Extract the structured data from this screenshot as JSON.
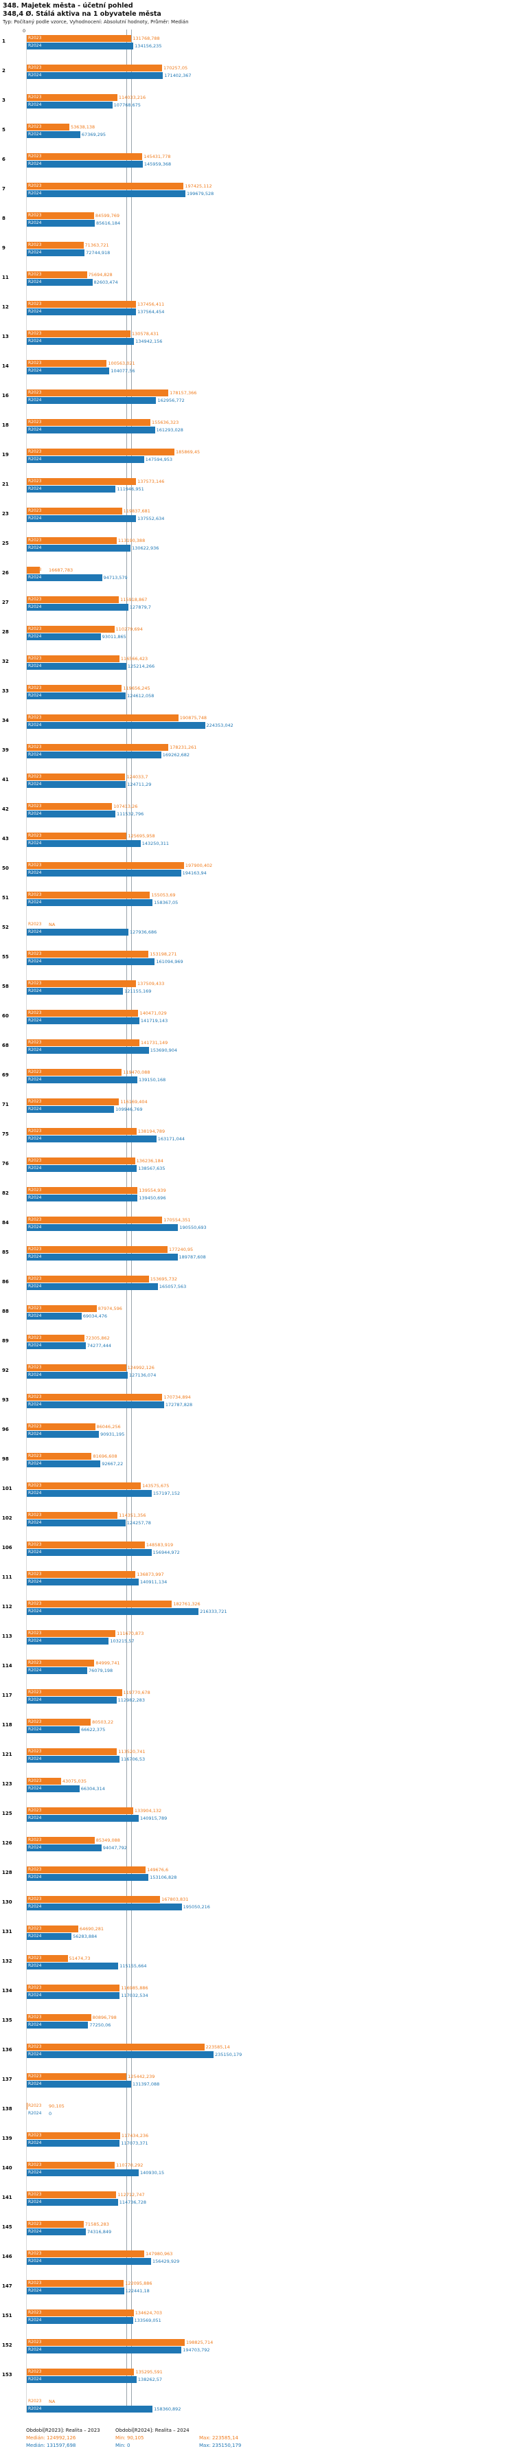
{
  "header": {
    "title": "348. Majetek města - účetní pohled",
    "indicator": "348,4 Ø. Stálá aktiva na 1 obyvatele města",
    "meta": "Typ: Počítaný podle vzorce, Vyhodnocení: Absolutní hodnoty, Průměr: Medián"
  },
  "legend": {
    "r2023": {
      "period": "Období[R2023]: Realita – 2023",
      "median": "Medián: 124992,126",
      "min": "Min: 90,105",
      "max": "Max: 223585,14"
    },
    "r2024": {
      "period": "Období[R2024]: Realita – 2024",
      "median": "Medián: 131597,698",
      "min": "Min: 0",
      "max": "Max: 235150,179"
    }
  },
  "chart_data": {
    "type": "bar",
    "orientation": "horizontal",
    "title": "348,4 Ø. Stálá aktiva na 1 obyvatele města",
    "x_axis": {
      "min": 0,
      "max": 235150.179,
      "zero_label": "0"
    },
    "grid": "median-lines-only",
    "legend_position": "bottom",
    "series": [
      {
        "name": "R2023",
        "color": "#F07D1F",
        "median": 124992.126,
        "min": 90.105,
        "max": 223585.14
      },
      {
        "name": "R2024",
        "color": "#1F77B4",
        "median": 131597.698,
        "min": 0,
        "max": 235150.179
      }
    ],
    "columns": [
      "row_number",
      "R2023",
      "R2024"
    ],
    "rows": [
      [
        "1",
        "131768,788",
        "134156,235"
      ],
      [
        "2",
        "170257,05",
        "171402,367"
      ],
      [
        "3",
        "114033,216",
        "107768,675"
      ],
      [
        "5",
        "53638,138",
        "67369,295"
      ],
      [
        "6",
        "145431,778",
        "145959,368"
      ],
      [
        "7",
        "197425,112",
        "199679,528"
      ],
      [
        "8",
        "84599,769",
        "85616,184"
      ],
      [
        "9",
        "71363,721",
        "72744,918"
      ],
      [
        "11",
        "75694,828",
        "82603,474"
      ],
      [
        "12",
        "137456,411",
        "137564,454"
      ],
      [
        "13",
        "130578,431",
        "134942,156"
      ],
      [
        "14",
        "100563,021",
        "104077,56"
      ],
      [
        "16",
        "178157,366",
        "162956,772"
      ],
      [
        "18",
        "155636,323",
        "161293,028"
      ],
      [
        "19",
        "185869,45",
        "147594,953"
      ],
      [
        "21",
        "137573,146",
        "111946,951"
      ],
      [
        "23",
        "119837,681",
        "137552,634"
      ],
      [
        "25",
        "113190,388",
        "130622,936"
      ],
      [
        "26",
        "16687,783",
        "94713,579"
      ],
      [
        "27",
        "115918,867",
        "127879,7"
      ],
      [
        "28",
        "110279,694",
        "93011,865"
      ],
      [
        "32",
        "116566,423",
        "125214,266"
      ],
      [
        "33",
        "119656,245",
        "124612,058"
      ],
      [
        "34",
        "190875,748",
        "224353,042"
      ],
      [
        "39",
        "178231,261",
        "169262,682"
      ],
      [
        "41",
        "124033,7",
        "124711,29"
      ],
      [
        "42",
        "107413,26",
        "111532,796"
      ],
      [
        "43",
        "125695,958",
        "143250,311"
      ],
      [
        "50",
        "197900,402",
        "194163,94"
      ],
      [
        "51",
        "155053,69",
        "158367,05"
      ],
      [
        "52",
        "NA",
        "127936,686"
      ],
      [
        "55",
        "153198,271",
        "161094,969"
      ],
      [
        "58",
        "137509,433",
        "121155,169"
      ],
      [
        "60",
        "140471,029",
        "141719,143"
      ],
      [
        "68",
        "141731,149",
        "153690,904"
      ],
      [
        "69",
        "119470,088",
        "139150,168"
      ],
      [
        "71",
        "116169,404",
        "109946,769"
      ],
      [
        "75",
        "138194,789",
        "163171,044"
      ],
      [
        "76",
        "136236,184",
        "138567,635"
      ],
      [
        "82",
        "139554,939",
        "139450,696"
      ],
      [
        "84",
        "170554,351",
        "190550,693"
      ],
      [
        "85",
        "177240,95",
        "189787,608"
      ],
      [
        "86",
        "153695,732",
        "165057,563"
      ],
      [
        "88",
        "87974,596",
        "69034,476"
      ],
      [
        "89",
        "72305,862",
        "74277,444"
      ],
      [
        "92",
        "124992,126",
        "127136,074"
      ],
      [
        "93",
        "170734,894",
        "172787,828"
      ],
      [
        "96",
        "86046,256",
        "90931,195"
      ],
      [
        "98",
        "81696,608",
        "92667,22"
      ],
      [
        "101",
        "143575,675",
        "157197,152"
      ],
      [
        "102",
        "114351,356",
        "124257,78"
      ],
      [
        "106",
        "148583,919",
        "156944,972"
      ],
      [
        "111",
        "136873,997",
        "140911,134"
      ],
      [
        "112",
        "182761,326",
        "216333,721"
      ],
      [
        "113",
        "111670,873",
        "103215,57"
      ],
      [
        "114",
        "84999,741",
        "76079,198"
      ],
      [
        "117",
        "119770,678",
        "112982,283"
      ],
      [
        "118",
        "80503,22",
        "66622,375"
      ],
      [
        "121",
        "113520,741",
        "116706,53"
      ],
      [
        "123",
        "43075,035",
        "66304,314"
      ],
      [
        "125",
        "133904,132",
        "140915,789"
      ],
      [
        "126",
        "85349,088",
        "94047,792"
      ],
      [
        "128",
        "149676,6",
        "153106,828"
      ],
      [
        "130",
        "167803,831",
        "195050,216"
      ],
      [
        "131",
        "64690,281",
        "56283,884"
      ],
      [
        "132",
        "51474,73",
        "115155,664"
      ],
      [
        "134",
        "116985,886",
        "117032,534"
      ],
      [
        "135",
        "80896,798",
        "77250,06"
      ],
      [
        "136",
        "223585,14",
        "235150,179"
      ],
      [
        "137",
        "125442,239",
        "131397,088"
      ],
      [
        "138",
        "90,105",
        "0"
      ],
      [
        "139",
        "117434,236",
        "117073,371"
      ],
      [
        "140",
        "110770,292",
        "140930,15"
      ],
      [
        "141",
        "112712,747",
        "114736,728"
      ],
      [
        "145",
        "71585,283",
        "74316,849"
      ],
      [
        "146",
        "147980,963",
        "156429,929"
      ],
      [
        "147",
        "122095,886",
        "122441,18"
      ],
      [
        "151",
        "134624,703",
        "133569,051"
      ],
      [
        "152",
        "198825,714",
        "194703,792"
      ],
      [
        "153",
        "135295,591",
        "138262,57"
      ],
      [
        "",
        "NA",
        "158360,892"
      ]
    ]
  }
}
